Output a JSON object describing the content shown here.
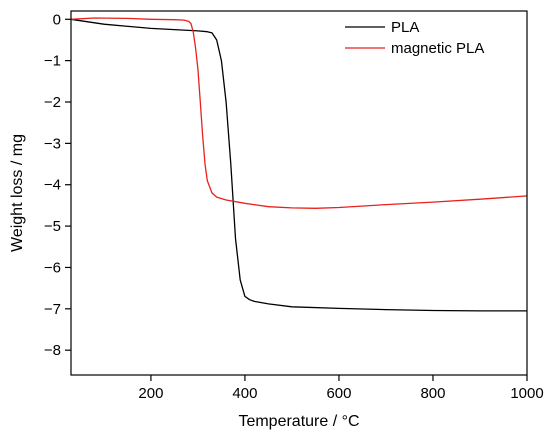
{
  "chart_data": {
    "type": "line",
    "title": "",
    "xlabel": "Temperature / °C",
    "ylabel": "Weight loss / mg",
    "xlim": [
      30,
      1000
    ],
    "ylim": [
      -8.6,
      0.2
    ],
    "xticks": [
      200,
      400,
      600,
      800,
      1000
    ],
    "xtick_labels": [
      "200",
      "400",
      "600",
      "800",
      "1000"
    ],
    "yticks": [
      0,
      -1,
      -2,
      -3,
      -4,
      -5,
      -6,
      -7,
      -8
    ],
    "ytick_labels": [
      "0",
      "−1",
      "−2",
      "−3",
      "−4",
      "−5",
      "−6",
      "−7",
      "−8"
    ],
    "grid": false,
    "legend_position": "top-right",
    "series": [
      {
        "name": "PLA",
        "color": "#000000",
        "x": [
          30,
          100,
          200,
          250,
          300,
          320,
          330,
          340,
          350,
          360,
          370,
          380,
          390,
          400,
          410,
          420,
          450,
          500,
          600,
          700,
          800,
          900,
          1000
        ],
        "y": [
          0,
          -0.12,
          -0.22,
          -0.25,
          -0.28,
          -0.3,
          -0.33,
          -0.5,
          -1.0,
          -2.0,
          -3.5,
          -5.3,
          -6.3,
          -6.7,
          -6.78,
          -6.82,
          -6.88,
          -6.95,
          -6.99,
          -7.02,
          -7.04,
          -7.05,
          -7.05
        ]
      },
      {
        "name": "magnetic PLA",
        "color": "#e8211c",
        "x": [
          30,
          80,
          150,
          200,
          250,
          270,
          280,
          285,
          290,
          295,
          300,
          305,
          310,
          315,
          320,
          330,
          340,
          360,
          400,
          450,
          500,
          550,
          600,
          700,
          800,
          900,
          1000
        ],
        "y": [
          0,
          0.03,
          0.02,
          0.0,
          -0.01,
          -0.02,
          -0.05,
          -0.1,
          -0.3,
          -0.7,
          -1.2,
          -2.0,
          -2.8,
          -3.5,
          -3.9,
          -4.2,
          -4.3,
          -4.37,
          -4.45,
          -4.53,
          -4.56,
          -4.57,
          -4.55,
          -4.48,
          -4.42,
          -4.35,
          -4.27
        ]
      }
    ]
  }
}
